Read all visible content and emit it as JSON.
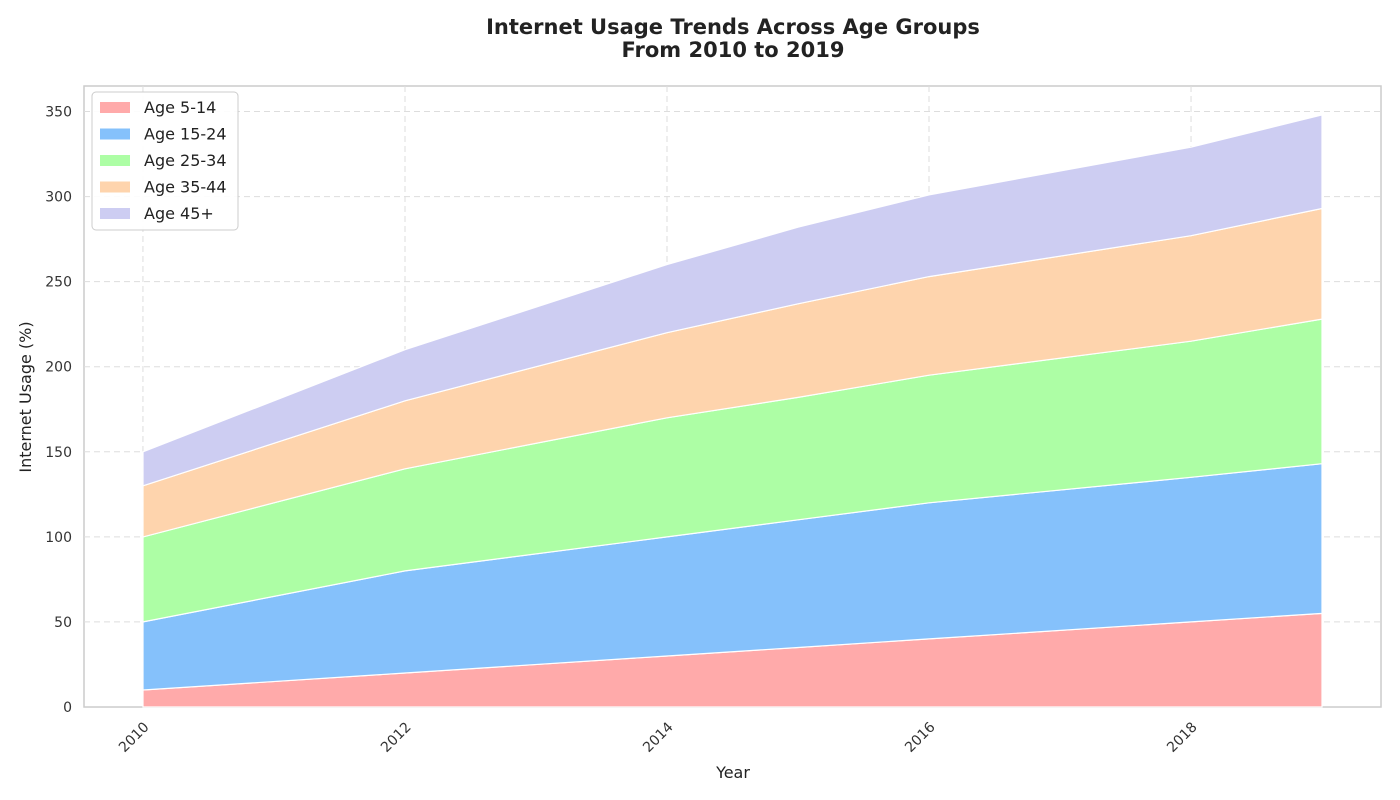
{
  "chart_data": {
    "type": "area",
    "stacked": true,
    "title": "Internet Usage Trends Across Age Groups",
    "subtitle": "From 2010 to 2019",
    "xlabel": "Year",
    "ylabel": "Internet Usage (%)",
    "x": [
      2010,
      2012,
      2014,
      2015,
      2016,
      2018,
      2019
    ],
    "xticks": [
      2010,
      2012,
      2014,
      2016,
      2018
    ],
    "yticks": [
      0,
      50,
      100,
      150,
      200,
      250,
      300,
      350
    ],
    "xlim": [
      2009.55,
      2019.45
    ],
    "ylim": [
      0,
      365
    ],
    "grid": true,
    "legend_position": "top-left",
    "series": [
      {
        "name": "Age 5-14",
        "color": "#ffaaaa",
        "values": [
          10,
          20,
          30,
          35,
          40,
          50,
          55
        ]
      },
      {
        "name": "Age 15-24",
        "color": "#85c1fb",
        "values": [
          40,
          60,
          70,
          75,
          80,
          85,
          88
        ]
      },
      {
        "name": "Age 25-34",
        "color": "#adfea5",
        "values": [
          50,
          60,
          70,
          72,
          75,
          80,
          85
        ]
      },
      {
        "name": "Age 35-44",
        "color": "#fed4ad",
        "values": [
          30,
          40,
          50,
          55,
          58,
          62,
          65
        ]
      },
      {
        "name": "Age 45+",
        "color": "#cdcdf2",
        "values": [
          20,
          30,
          40,
          45,
          48,
          52,
          55
        ]
      }
    ]
  }
}
